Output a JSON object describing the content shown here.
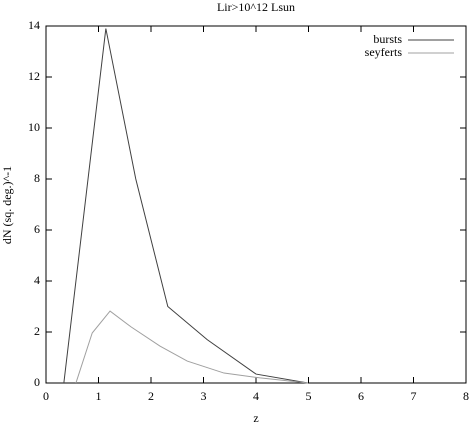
{
  "chart_data": {
    "type": "line",
    "title": "Lir>10^12 Lsun",
    "x_label": "z",
    "y_label": "dN (sq. deg.)^-1",
    "xlim": [
      0,
      8
    ],
    "xticks": [
      0,
      1,
      2,
      3,
      4,
      5,
      6,
      7,
      8
    ],
    "ylim": [
      0,
      14
    ],
    "yticks": [
      0,
      2,
      4,
      6,
      8,
      10,
      12,
      14
    ],
    "grid": false,
    "legend": "top-right",
    "series": [
      {
        "name": "bursts",
        "color": "#404040",
        "x": [
          0.34,
          1.14,
          1.71,
          2.32,
          3.07,
          4.0,
          4.99
        ],
        "values": [
          0,
          13.9,
          8,
          3,
          1.7,
          0.35,
          0
        ]
      },
      {
        "name": "seyferts",
        "color": "#a0a0a0",
        "x": [
          0.57,
          0.88,
          1.22,
          1.62,
          2.17,
          2.69,
          3.39,
          4.08,
          4.99
        ],
        "values": [
          0,
          1.96,
          2.82,
          2.2,
          1.45,
          0.86,
          0.39,
          0.2,
          0
        ]
      }
    ]
  }
}
